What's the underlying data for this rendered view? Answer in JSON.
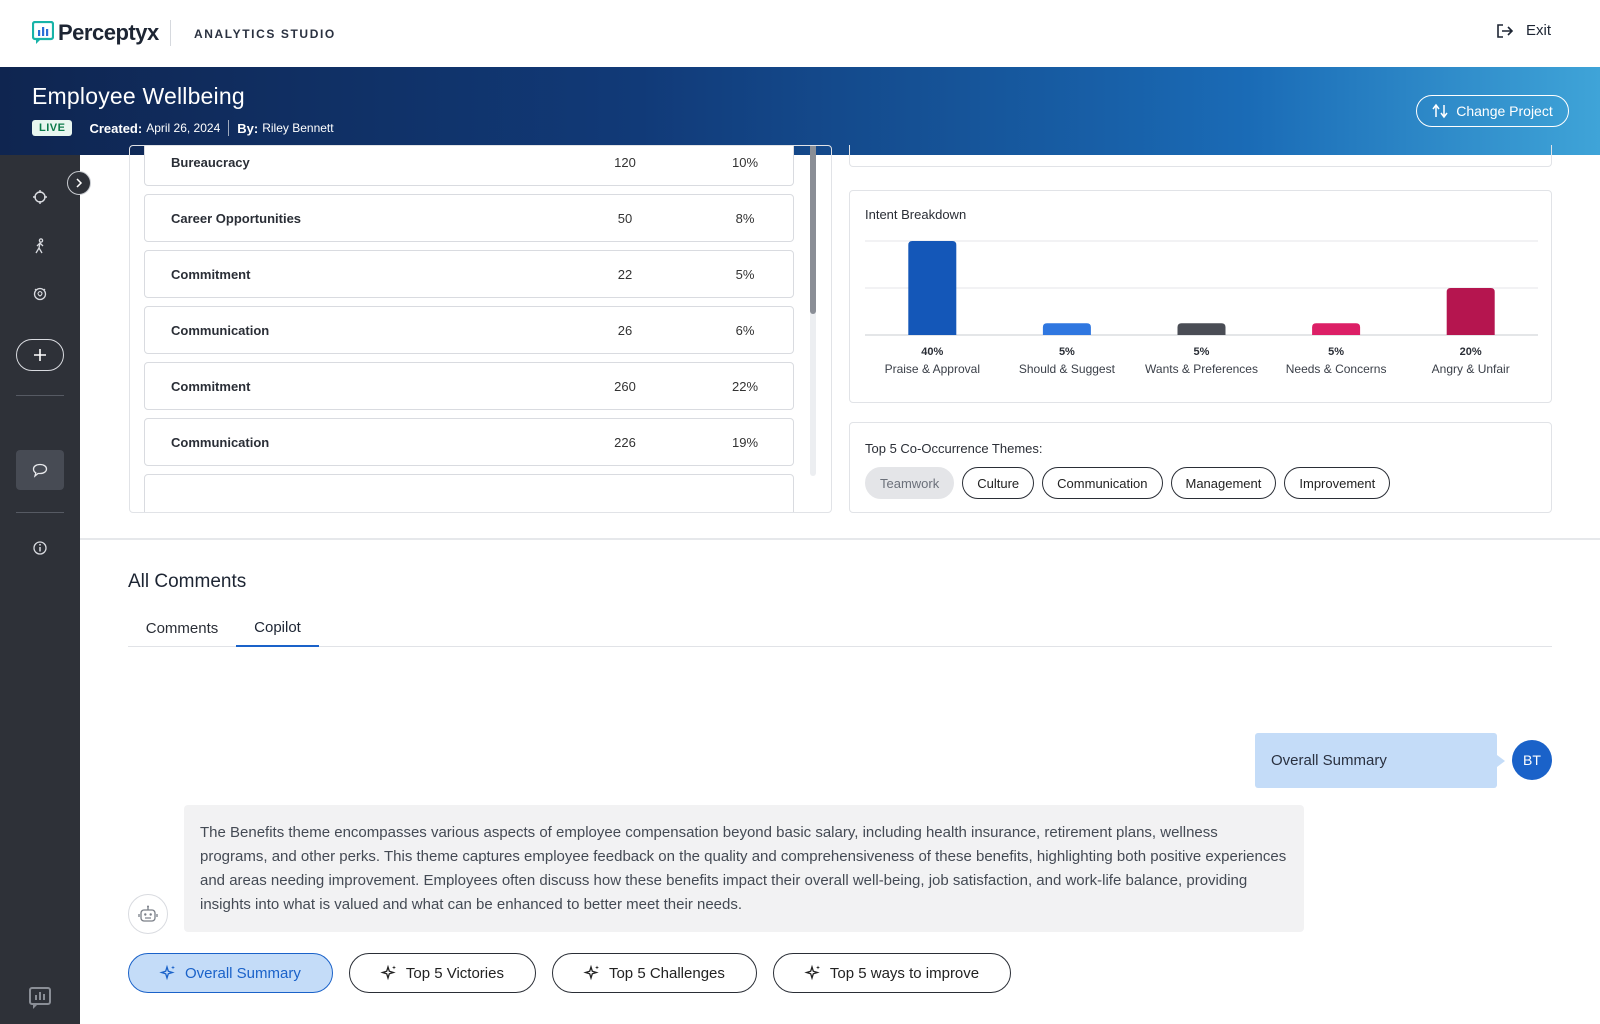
{
  "brand": {
    "name": "Perceptyx",
    "product": "ANALYTICS STUDIO"
  },
  "header": {
    "exit_label": "Exit"
  },
  "banner": {
    "title": "Employee Wellbeing",
    "status": "LIVE",
    "created_label": "Created:",
    "created_value": "April 26, 2024",
    "by_label": "By:",
    "by_value": "Riley Bennett",
    "change_project_label": "Change Project"
  },
  "sidebar": {
    "icons": [
      "crosshair-icon",
      "walking-person-icon",
      "lightbulb-icon",
      "plus-icon",
      "chat-icon",
      "info-icon",
      "feedback-icon"
    ]
  },
  "themes_table": {
    "rows": [
      {
        "name": "Bureaucracy",
        "count": "120",
        "pct": "10%"
      },
      {
        "name": "Career Opportunities",
        "count": "50",
        "pct": "8%"
      },
      {
        "name": "Commitment",
        "count": "22",
        "pct": "5%"
      },
      {
        "name": "Communication",
        "count": "26",
        "pct": "6%"
      },
      {
        "name": "Commitment",
        "count": "260",
        "pct": "22%"
      },
      {
        "name": "Communication",
        "count": "226",
        "pct": "19%"
      }
    ]
  },
  "intent": {
    "title": "Intent Breakdown"
  },
  "chart_data": {
    "type": "bar",
    "title": "Intent Breakdown",
    "categories": [
      "Praise & Approval",
      "Should & Suggest",
      "Wants & Preferences",
      "Needs & Concerns",
      "Angry & Unfair"
    ],
    "values": [
      40,
      5,
      5,
      5,
      20
    ],
    "labels": [
      "40%",
      "5%",
      "5%",
      "5%",
      "20%"
    ],
    "colors": [
      "#1457b8",
      "#2f77e0",
      "#4a4d55",
      "#dc1f66",
      "#b5154f"
    ],
    "ylim": [
      0,
      40
    ],
    "grid": true
  },
  "cooccurrence": {
    "title": "Top 5 Co-Occurrence Themes:",
    "chips": [
      "Teamwork",
      "Culture",
      "Communication",
      "Management",
      "Improvement"
    ]
  },
  "comments": {
    "title": "All Comments",
    "tabs": [
      "Comments",
      "Copilot"
    ],
    "active_tab": "Copilot"
  },
  "chat": {
    "user_message": "Overall Summary",
    "user_initials": "BT",
    "bot_message": "The Benefits theme encompasses various aspects of employee compensation beyond basic salary, including health insurance, retirement plans, wellness programs, and other perks. This theme captures employee feedback on the quality and comprehensiveness of these benefits, highlighting both positive experiences and areas needing improvement. Employees often discuss how these benefits impact their overall well-being, job satisfaction, and work-life balance, providing insights into what is valued and what can be enhanced to better meet their needs."
  },
  "prompts": [
    "Overall Summary",
    "Top 5 Victories",
    "Top 5 Challenges",
    "Top 5 ways to improve"
  ],
  "colors": {
    "accent": "#1a62c9",
    "sidebar": "#2e3138",
    "selected_bubble": "#c4dcf8"
  }
}
